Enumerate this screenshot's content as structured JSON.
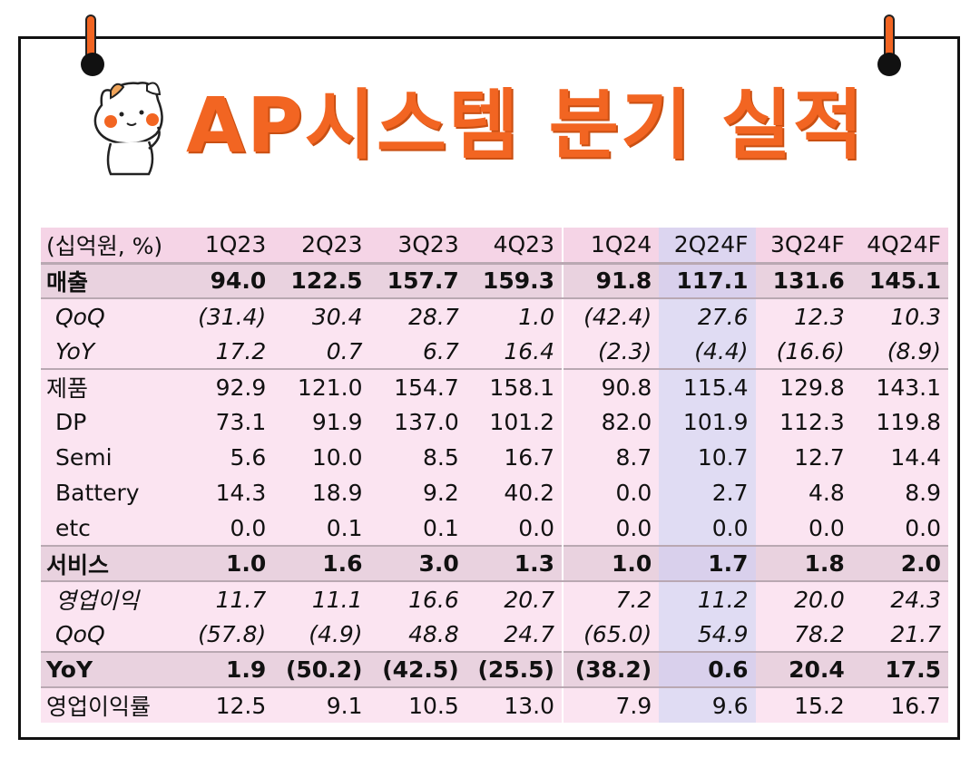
{
  "title": "AP시스템 분기 실적",
  "table": {
    "header": [
      "(십억원, %)",
      "1Q23",
      "2Q23",
      "3Q23",
      "4Q23",
      "1Q24",
      "2Q24F",
      "3Q24F",
      "4Q24F"
    ],
    "rows": [
      {
        "label": "매출",
        "values": [
          "94.0",
          "122.5",
          "157.7",
          "159.3",
          "91.8",
          "117.1",
          "131.6",
          "145.1"
        ]
      },
      {
        "label": "QoQ",
        "values": [
          "(31.4)",
          "30.4",
          "28.7",
          "1.0",
          "(42.4)",
          "27.6",
          "12.3",
          "10.3"
        ]
      },
      {
        "label": "YoY",
        "values": [
          "17.2",
          "0.7",
          "6.7",
          "16.4",
          "(2.3)",
          "(4.4)",
          "(16.6)",
          "(8.9)"
        ]
      },
      {
        "label": "제품",
        "values": [
          "92.9",
          "121.0",
          "154.7",
          "158.1",
          "90.8",
          "115.4",
          "129.8",
          "143.1"
        ]
      },
      {
        "label": "DP",
        "values": [
          "73.1",
          "91.9",
          "137.0",
          "101.2",
          "82.0",
          "101.9",
          "112.3",
          "119.8"
        ]
      },
      {
        "label": "Semi",
        "values": [
          "5.6",
          "10.0",
          "8.5",
          "16.7",
          "8.7",
          "10.7",
          "12.7",
          "14.4"
        ]
      },
      {
        "label": "Battery",
        "values": [
          "14.3",
          "18.9",
          "9.2",
          "40.2",
          "0.0",
          "2.7",
          "4.8",
          "8.9"
        ]
      },
      {
        "label": "etc",
        "values": [
          "0.0",
          "0.1",
          "0.1",
          "0.0",
          "0.0",
          "0.0",
          "0.0",
          "0.0"
        ]
      },
      {
        "label": "서비스",
        "values": [
          "1.0",
          "1.6",
          "3.0",
          "1.3",
          "1.0",
          "1.7",
          "1.8",
          "2.0"
        ]
      },
      {
        "label": "영업이익",
        "values": [
          "11.7",
          "11.1",
          "16.6",
          "20.7",
          "7.2",
          "11.2",
          "20.0",
          "24.3"
        ]
      },
      {
        "label": "QoQ",
        "values": [
          "(57.8)",
          "(4.9)",
          "48.8",
          "24.7",
          "(65.0)",
          "54.9",
          "78.2",
          "21.7"
        ]
      },
      {
        "label": "YoY",
        "values": [
          "1.9",
          "(50.2)",
          "(42.5)",
          "(25.5)",
          "(38.2)",
          "0.6",
          "20.4",
          "17.5"
        ]
      },
      {
        "label": "영업이익률",
        "values": [
          "12.5",
          "9.1",
          "10.5",
          "13.0",
          "7.9",
          "9.6",
          "15.2",
          "16.7"
        ]
      }
    ]
  },
  "colors": {
    "title": "#f26522",
    "table_bg": "#fbe4f1",
    "highlight_column": "#e0dcf3"
  },
  "icons": [
    "cat-mascot-icon",
    "pushpin-icon"
  ]
}
